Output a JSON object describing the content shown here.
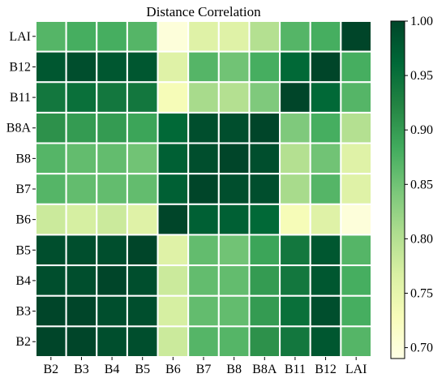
{
  "chart_data": {
    "type": "heatmap",
    "title": "Distance Correlation",
    "x_categories": [
      "B2",
      "B3",
      "B4",
      "B5",
      "B6",
      "B7",
      "B8",
      "B8A",
      "B11",
      "B12",
      "LAI"
    ],
    "y_categories_top_to_bottom": [
      "LAI",
      "B12",
      "B11",
      "B8A",
      "B8",
      "B7",
      "B6",
      "B5",
      "B4",
      "B3",
      "B2"
    ],
    "values": [
      [
        0.87,
        0.88,
        0.88,
        0.87,
        0.7,
        0.76,
        0.76,
        0.8,
        0.87,
        0.88,
        1.0
      ],
      [
        0.98,
        0.99,
        0.98,
        0.98,
        0.76,
        0.87,
        0.85,
        0.88,
        0.96,
        1.0,
        0.88
      ],
      [
        0.94,
        0.95,
        0.94,
        0.94,
        0.73,
        0.81,
        0.8,
        0.84,
        1.0,
        0.96,
        0.87
      ],
      [
        0.91,
        0.9,
        0.9,
        0.89,
        0.96,
        0.99,
        0.99,
        1.0,
        0.84,
        0.88,
        0.8
      ],
      [
        0.87,
        0.86,
        0.86,
        0.85,
        0.97,
        0.99,
        1.0,
        0.99,
        0.8,
        0.85,
        0.76
      ],
      [
        0.87,
        0.86,
        0.86,
        0.86,
        0.97,
        1.0,
        0.99,
        0.99,
        0.81,
        0.87,
        0.76
      ],
      [
        0.78,
        0.77,
        0.78,
        0.76,
        1.0,
        0.97,
        0.97,
        0.96,
        0.73,
        0.76,
        0.7
      ],
      [
        0.99,
        0.99,
        0.99,
        1.0,
        0.76,
        0.86,
        0.85,
        0.89,
        0.94,
        0.98,
        0.87
      ],
      [
        0.99,
        0.99,
        1.0,
        0.99,
        0.78,
        0.86,
        0.86,
        0.9,
        0.94,
        0.98,
        0.88
      ],
      [
        1.0,
        1.0,
        0.99,
        0.99,
        0.77,
        0.86,
        0.86,
        0.9,
        0.95,
        0.99,
        0.88
      ],
      [
        1.0,
        1.0,
        0.99,
        0.99,
        0.78,
        0.87,
        0.87,
        0.91,
        0.94,
        0.98,
        0.87
      ]
    ],
    "colorbar": {
      "min": 0.69,
      "max": 1.0,
      "ticks": [
        0.7,
        0.75,
        0.8,
        0.85,
        0.9,
        0.95,
        1.0
      ],
      "tick_labels": [
        "0.70",
        "0.75",
        "0.80",
        "0.85",
        "0.90",
        "0.95",
        "1.00"
      ],
      "colormap": [
        "#ffffe5",
        "#f7fcb9",
        "#d9f0a3",
        "#addd8e",
        "#78c679",
        "#41ab5d",
        "#238443",
        "#006837",
        "#004529"
      ]
    },
    "grid_line_color": "#ffffff"
  }
}
